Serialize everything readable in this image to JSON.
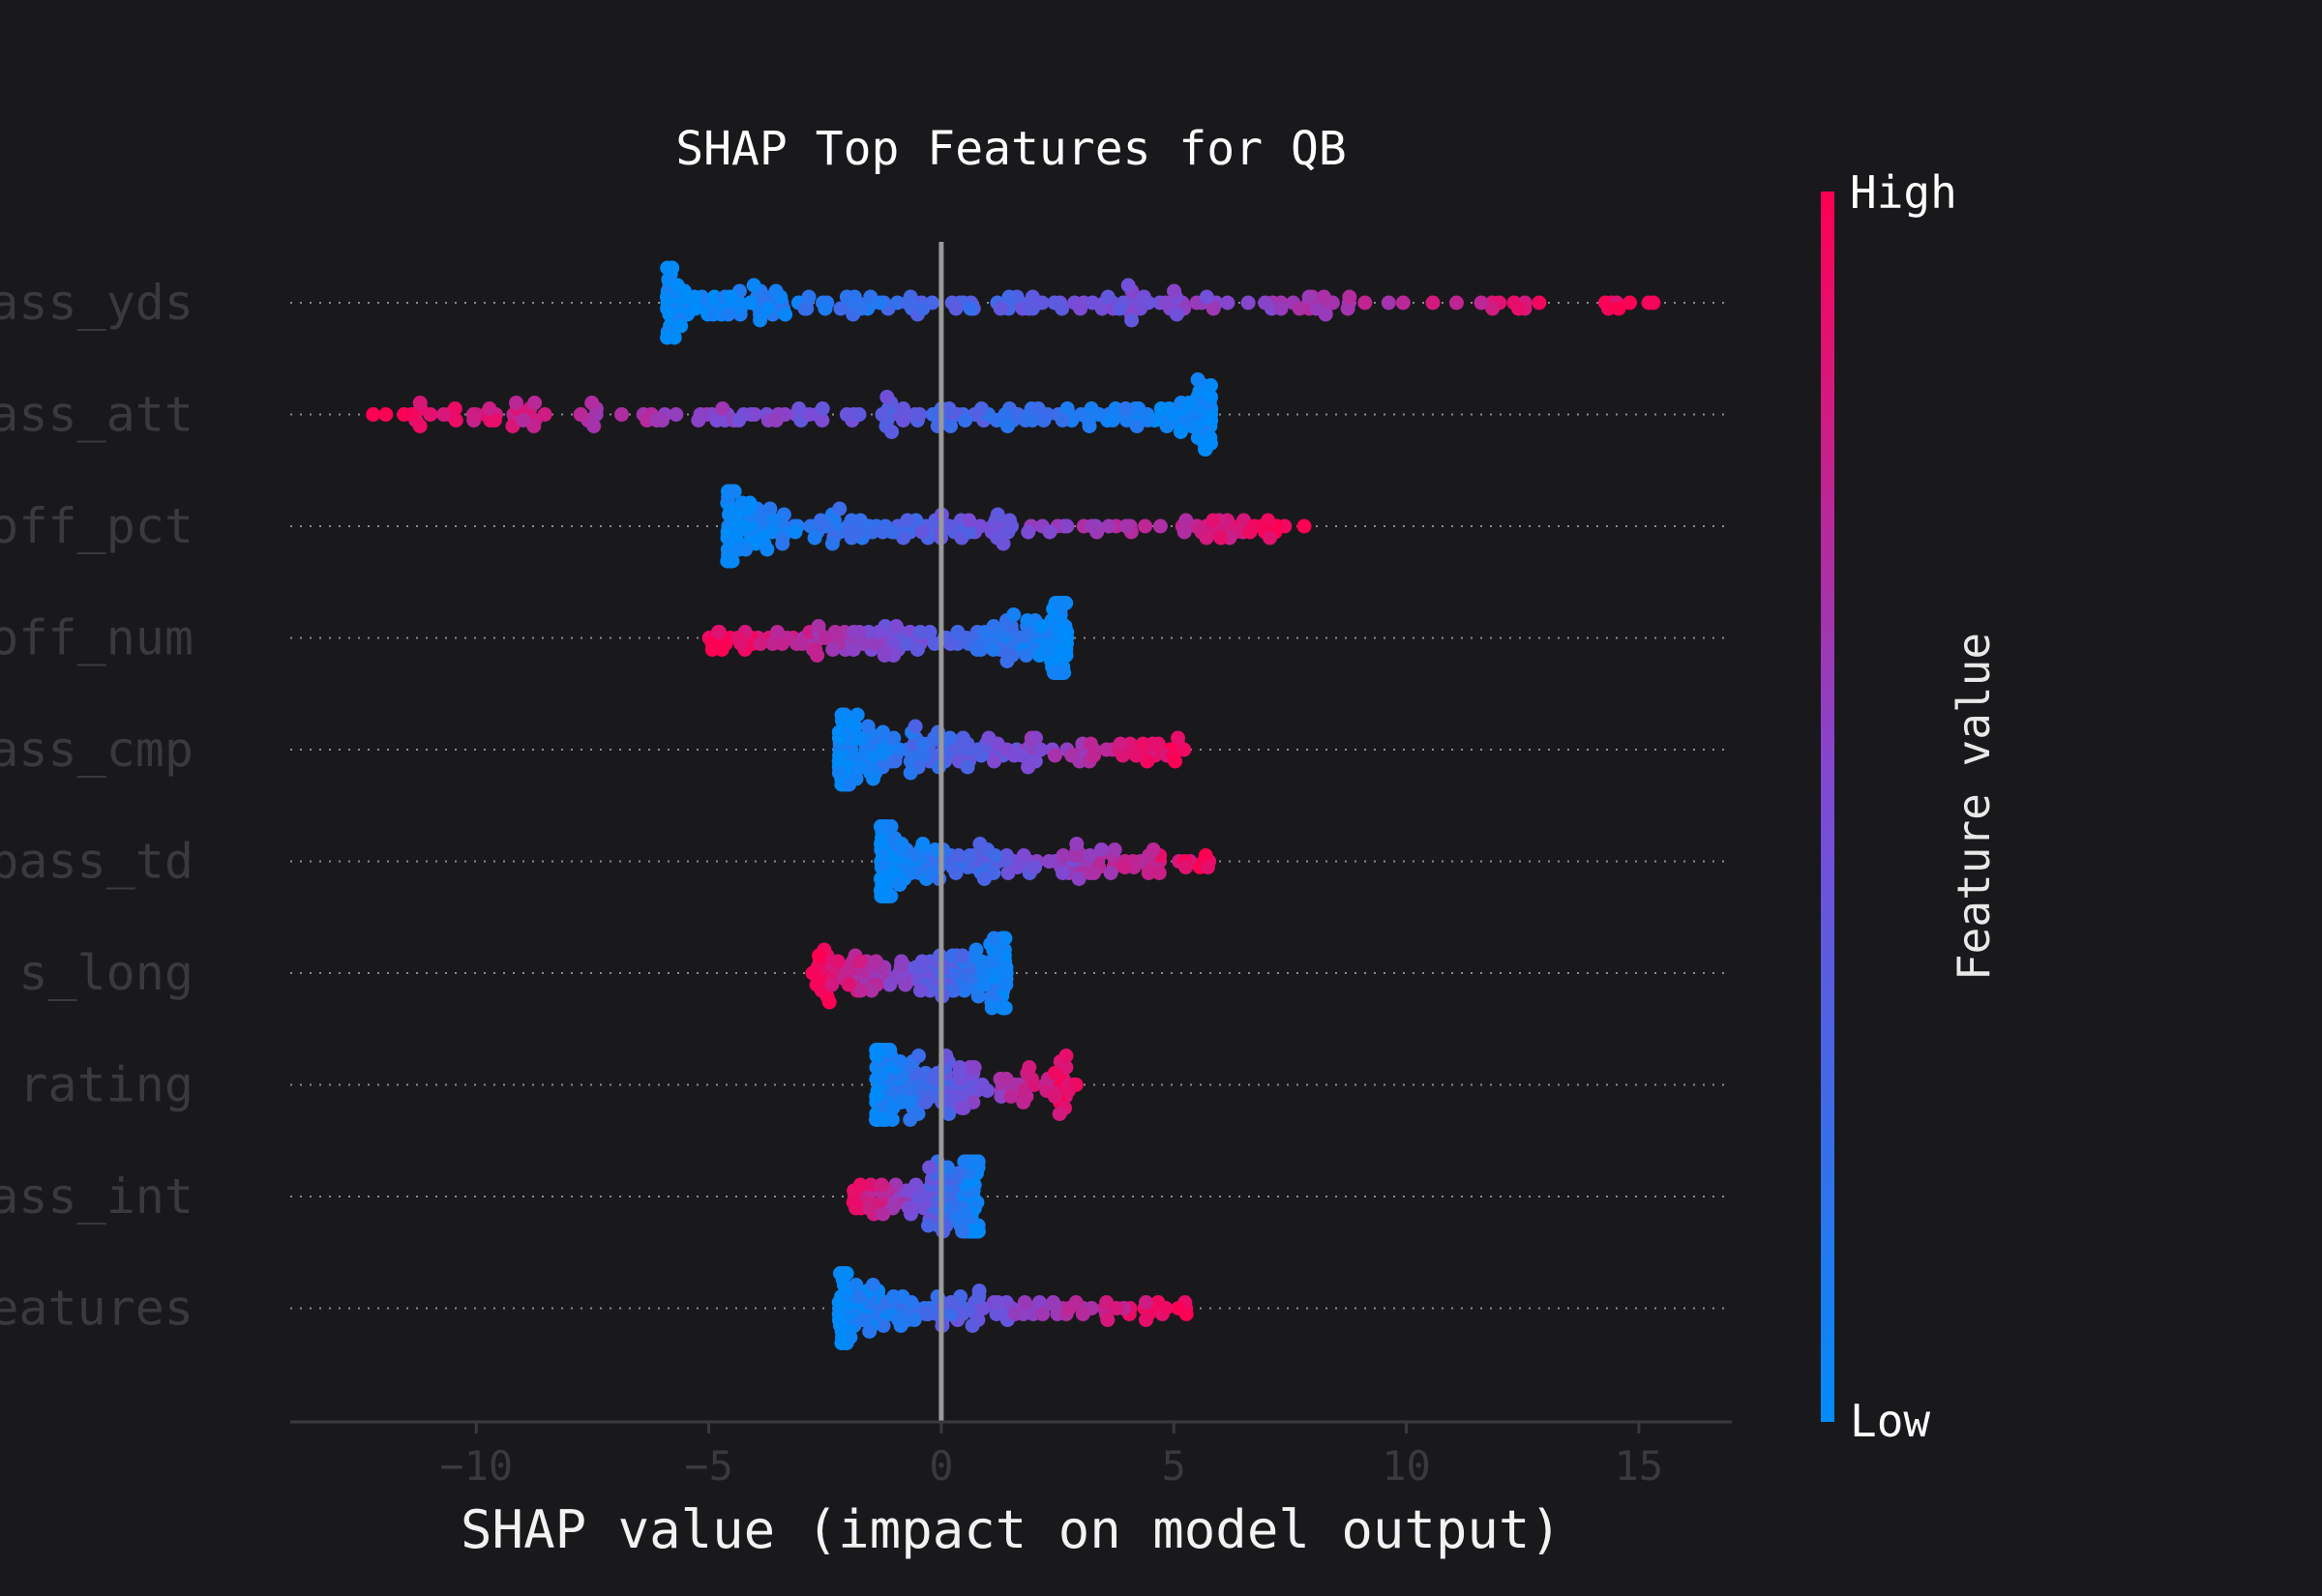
{
  "chart_data": {
    "type": "scatter",
    "title": "SHAP Top Features for QB",
    "xlabel": "SHAP value (impact on model output)",
    "xlim": [
      -14,
      17
    ],
    "xticks": [
      -10,
      -5,
      0,
      5,
      10,
      15
    ],
    "xtick_labels": [
      "−10",
      "−5",
      "0",
      "5",
      "10",
      "15"
    ],
    "grid": false,
    "legend": "colorbar-right",
    "colorbar": {
      "title": "Feature value",
      "high_label": "High",
      "low_label": "Low",
      "low_color": "#008bfb",
      "mid_color": "#7b4bd6",
      "high_color": "#ff0052"
    },
    "features": [
      {
        "label": "ass_yds",
        "min": -5.9,
        "max": 15.5,
        "point_count": 210
      },
      {
        "label": "ass_att",
        "min": -12.6,
        "max": 5.8,
        "point_count": 200
      },
      {
        "label": "off_pct",
        "min": -4.6,
        "max": 7.9,
        "point_count": 190
      },
      {
        "label": "off_num",
        "min": -5.0,
        "max": 2.7,
        "point_count": 180
      },
      {
        "label": "ass_cmp",
        "min": -2.2,
        "max": 5.4,
        "point_count": 180
      },
      {
        "label": "pass_td",
        "min": -1.3,
        "max": 5.9,
        "point_count": 170
      },
      {
        "label": "s_long",
        "min": -2.8,
        "max": 1.4,
        "point_count": 160
      },
      {
        "label": "rating",
        "min": -1.4,
        "max": 2.9,
        "point_count": 160
      },
      {
        "label": "ass_int",
        "min": -2.0,
        "max": 0.8,
        "point_count": 150
      },
      {
        "label": "eatures",
        "min": -2.2,
        "max": 5.3,
        "point_count": 150
      }
    ]
  }
}
